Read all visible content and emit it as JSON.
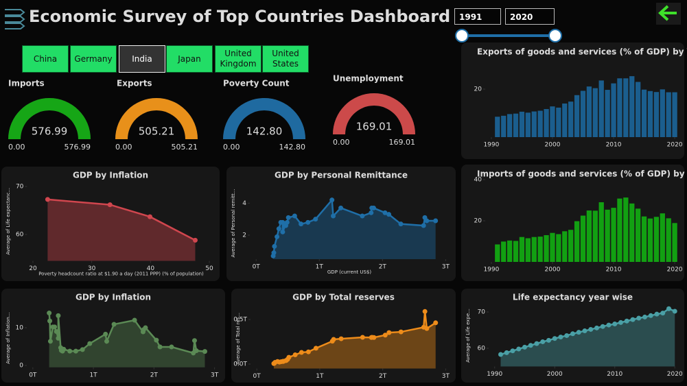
{
  "header": {
    "title": "Economic Survey of Top Countries Dashboard"
  },
  "year_slicer": {
    "start": 1991,
    "end": 2020
  },
  "countries": {
    "options": [
      "China",
      "Germany",
      "India",
      "Japan",
      "United Kingdom",
      "United States"
    ],
    "selected": "India"
  },
  "gauges": [
    {
      "title": "Imports",
      "value": 576.99,
      "min": {
        "value": 0,
        "label": "0.00"
      },
      "max": 576.99,
      "color": "#16a616"
    },
    {
      "title": "Exports",
      "value": 505.21,
      "min": {
        "value": 0,
        "label": "0.00"
      },
      "max": 505.21,
      "color": "#e8901a"
    },
    {
      "title": "Poverty Count",
      "value": {
        "value": 142.8,
        "label": "142.80"
      },
      "min": {
        "value": 0,
        "label": "0.00"
      },
      "max": {
        "value": 142.8,
        "label": "142.80"
      },
      "color": "#1f6aa0"
    },
    {
      "title": "Unemployment",
      "value": 169.01,
      "min": {
        "value": 0,
        "label": "0.00"
      },
      "max": 169.01,
      "color": "#cc4a4a"
    }
  ],
  "chart_data": [
    {
      "type": "bar",
      "title": "Exports of goods and services (% of GDP) by Year",
      "x": [
        1991,
        1992,
        1993,
        1994,
        1995,
        1996,
        1997,
        1998,
        1999,
        2000,
        2001,
        2002,
        2003,
        2004,
        2005,
        2006,
        2007,
        2008,
        2009,
        2010,
        2011,
        2012,
        2013,
        2014,
        2015,
        2016,
        2017,
        2018,
        2019,
        2020
      ],
      "values": [
        8.5,
        8.9,
        9.6,
        9.8,
        10.6,
        10.2,
        10.7,
        11.0,
        11.7,
        12.8,
        12.3,
        14.0,
        14.8,
        17.5,
        19.3,
        21.1,
        20.4,
        23.6,
        19.7,
        22.4,
        24.5,
        24.5,
        25.4,
        23.0,
        19.8,
        19.2,
        18.8,
        19.9,
        18.7,
        18.7
      ],
      "color": "#1b5e8e",
      "xlim": [
        1989,
        2021
      ],
      "xticks": [
        1990,
        2000,
        2010,
        2020
      ],
      "ylim": [
        0,
        30
      ],
      "yticks": [
        20
      ]
    },
    {
      "type": "bar",
      "title": "Imports of goods and services (% of GDP) by Year",
      "x": [
        1991,
        1992,
        1993,
        1994,
        1995,
        1996,
        1997,
        1998,
        1999,
        2000,
        2001,
        2002,
        2003,
        2004,
        2005,
        2006,
        2007,
        2008,
        2009,
        2010,
        2011,
        2012,
        2013,
        2014,
        2015,
        2016,
        2017,
        2018,
        2019,
        2020
      ],
      "values": [
        8.5,
        9.9,
        10.4,
        10.2,
        12.1,
        11.5,
        12.1,
        12.3,
        13.0,
        14.1,
        13.5,
        14.9,
        15.6,
        19.8,
        22.5,
        25.0,
        24.9,
        29.0,
        25.4,
        26.3,
        30.8,
        31.3,
        28.4,
        25.9,
        22.1,
        21.1,
        21.9,
        23.6,
        21.2,
        18.9
      ],
      "color": "#12a012",
      "xlim": [
        1989,
        2021
      ],
      "xticks": [
        1990,
        2000,
        2010,
        2020
      ],
      "ylim": [
        0,
        42
      ],
      "yticks": [
        20,
        40
      ]
    },
    {
      "type": "area",
      "title": "GDP by Inflation",
      "x_label": "Poverty headcount ratio at $1.90 a day (2011 PPP) (% of population)",
      "y_label": "Average of Life expectanc...",
      "x": [
        22.5,
        33.1,
        39.9,
        47.6
      ],
      "values": [
        67.3,
        66.2,
        63.7,
        58.8
      ],
      "color": "#d0464e",
      "xlim": [
        19,
        51
      ],
      "xticks": [
        20,
        30,
        40,
        50
      ],
      "ylim": [
        54.5,
        71
      ],
      "yticks": [
        60,
        70
      ]
    },
    {
      "type": "area",
      "title": "GDP by Personal Remittance",
      "x_label": "GDP (current US$)",
      "y_label": "Average of Personal remitt...",
      "x": [
        270000000000.0,
        280000000000.0,
        290000000000.0,
        330000000000.0,
        360000000000.0,
        390000000000.0,
        420000000000.0,
        420000000000.0,
        460000000000.0,
        470000000000.0,
        490000000000.0,
        510000000000.0,
        610000000000.0,
        710000000000.0,
        820000000000.0,
        940000000000.0,
        1200000000000.0,
        1220000000000.0,
        1340000000000.0,
        1680000000000.0,
        1820000000000.0,
        1830000000000.0,
        1860000000000.0,
        2040000000000.0,
        2100000000000.0,
        2290000000000.0,
        2650000000000.0,
        2670000000000.0,
        2700000000000.0,
        2840000000000.0
      ],
      "values": [
        0.7,
        0.9,
        1.3,
        1.9,
        2.4,
        2.8,
        2.8,
        2.2,
        2.6,
        2.6,
        2.8,
        3.1,
        3.2,
        2.7,
        2.8,
        3.0,
        4.2,
        3.2,
        3.7,
        3.2,
        3.4,
        3.7,
        3.7,
        3.4,
        3.3,
        2.7,
        2.6,
        3.1,
        2.9,
        2.9
      ],
      "color": "#1f6fa8",
      "xlim": [
        -100000000000.0,
        3050000000000.0
      ],
      "xticks": [
        {
          "value": 0,
          "label": "0T"
        },
        {
          "value": 1000000000000.0,
          "label": "1T"
        },
        {
          "value": 2000000000000.0,
          "label": "2T"
        },
        {
          "value": 3000000000000.0,
          "label": "3T"
        }
      ],
      "ylim": [
        0.5,
        5
      ],
      "yticks": [
        2,
        4
      ]
    },
    {
      "type": "area",
      "title": "GDP by Inflation",
      "y_label": "Average of Inflation...",
      "x": [
        270000000000.0,
        280000000000.0,
        290000000000.0,
        330000000000.0,
        360000000000.0,
        390000000000.0,
        420000000000.0,
        420000000000.0,
        460000000000.0,
        470000000000.0,
        490000000000.0,
        510000000000.0,
        610000000000.0,
        710000000000.0,
        820000000000.0,
        940000000000.0,
        1200000000000.0,
        1220000000000.0,
        1340000000000.0,
        1680000000000.0,
        1820000000000.0,
        1830000000000.0,
        1860000000000.0,
        2040000000000.0,
        2100000000000.0,
        2290000000000.0,
        2650000000000.0,
        2670000000000.0,
        2700000000000.0,
        2840000000000.0
      ],
      "values": [
        13.9,
        11.8,
        6.4,
        10.2,
        10.2,
        9.0,
        7.2,
        13.2,
        4.7,
        4.0,
        3.8,
        4.3,
        3.8,
        3.8,
        4.2,
        5.8,
        8.3,
        6.4,
        10.9,
        12.0,
        8.9,
        9.5,
        10.0,
        6.7,
        4.9,
        4.9,
        3.3,
        6.6,
        3.9,
        3.7
      ],
      "color": "#5b8a55",
      "xlim": [
        -100000000000.0,
        3050000000000.0
      ],
      "xticks": [
        {
          "value": 0,
          "label": "0T"
        },
        {
          "value": 1000000000000.0,
          "label": "1T"
        },
        {
          "value": 2000000000000.0,
          "label": "2T"
        },
        {
          "value": 3000000000000.0,
          "label": "3T"
        }
      ],
      "ylim": [
        -0.5,
        15
      ],
      "yticks": [
        0,
        10
      ]
    },
    {
      "type": "area",
      "title": "GDP by Total reserves",
      "y_label": "Average of Total res...",
      "x": [
        270000000000.0,
        280000000000.0,
        290000000000.0,
        330000000000.0,
        360000000000.0,
        390000000000.0,
        420000000000.0,
        420000000000.0,
        460000000000.0,
        470000000000.0,
        490000000000.0,
        510000000000.0,
        610000000000.0,
        710000000000.0,
        820000000000.0,
        940000000000.0,
        1200000000000.0,
        1220000000000.0,
        1340000000000.0,
        1680000000000.0,
        1820000000000.0,
        1830000000000.0,
        1860000000000.0,
        2040000000000.0,
        2100000000000.0,
        2290000000000.0,
        2650000000000.0,
        2670000000000.0,
        2700000000000.0,
        2840000000000.0
      ],
      "values": [
        5800000000.0,
        9200000000.0,
        19000000000.0,
        29000000000.0,
        22000000000.0,
        27000000000.0,
        29000000000.0,
        32000000000.0,
        38000000000.0,
        41000000000.0,
        54000000000.0,
        76000000000.0,
        104000000000.0,
        131000000000.0,
        137000000000.0,
        178000000000.0,
        257000000000.0,
        277000000000.0,
        284000000000.0,
        300000000000.0,
        298000000000.0,
        300000000000.0,
        298000000000.0,
        325000000000.0,
        353000000000.0,
        361000000000.0,
        413000000000.0,
        590000000000.0,
        399000000000.0,
        463000000000.0
      ],
      "color": "#ee8c1a",
      "xlim": [
        -100000000000.0,
        3050000000000.0
      ],
      "xticks": [
        {
          "value": 0,
          "label": "0T"
        },
        {
          "value": 1000000000000.0,
          "label": "1T"
        },
        {
          "value": 2000000000000.0,
          "label": "2T"
        },
        {
          "value": 3000000000000.0,
          "label": "3T"
        }
      ],
      "ylim": [
        -50000000000.0,
        620000000000.0
      ],
      "yticks": [
        {
          "value": 0,
          "label": "0.0T"
        },
        {
          "value": 500000000000.0,
          "label": "0.5T"
        }
      ]
    },
    {
      "type": "area",
      "title": "Life expectancy year wise",
      "y_label": "Average of Life expe...",
      "x": [
        1991,
        1992,
        1993,
        1994,
        1995,
        1996,
        1997,
        1998,
        1999,
        2000,
        2001,
        2002,
        2003,
        2004,
        2005,
        2006,
        2007,
        2008,
        2009,
        2010,
        2011,
        2012,
        2013,
        2014,
        2015,
        2016,
        2017,
        2018,
        2019,
        2020
      ],
      "values": [
        58.3,
        58.8,
        59.3,
        59.8,
        60.3,
        60.8,
        61.3,
        61.8,
        62.2,
        62.7,
        63.1,
        63.5,
        64.0,
        64.4,
        64.8,
        65.2,
        65.6,
        66.0,
        66.4,
        66.7,
        67.1,
        67.5,
        67.9,
        68.3,
        68.6,
        69.0,
        69.4,
        69.7,
        70.9,
        70.2
      ],
      "color": "#4aa0a6",
      "xlim": [
        1989,
        2021
      ],
      "xticks": [
        1990,
        2000,
        2010,
        2020
      ],
      "ylim": [
        55,
        72
      ],
      "yticks": [
        60,
        70
      ]
    }
  ]
}
